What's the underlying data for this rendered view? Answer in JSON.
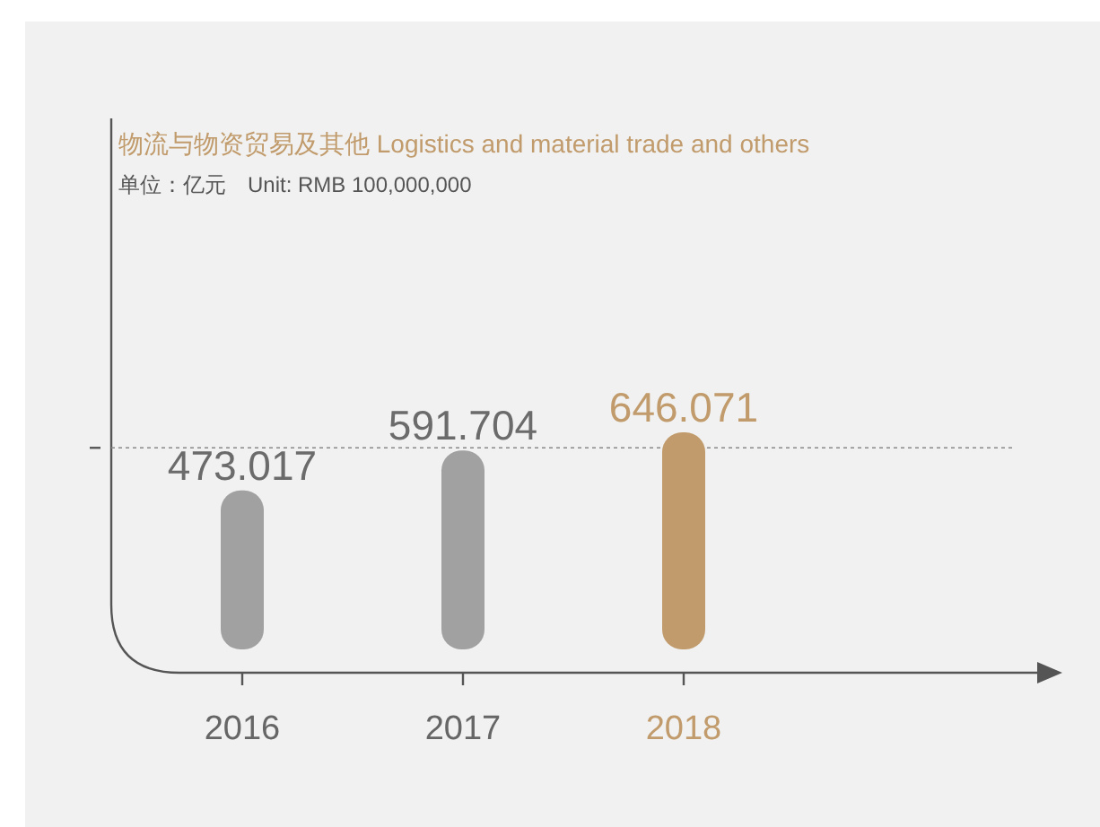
{
  "chart_data": {
    "type": "bar",
    "title": "物流与物资贸易及其他 Logistics and material trade and others",
    "subtitle": "单位：亿元　Unit: RMB 100,000,000",
    "categories": [
      "2016",
      "2017",
      "2018"
    ],
    "values": [
      473.017,
      591.704,
      646.071
    ],
    "colors": [
      "#a0a1a0",
      "#a0a1a0",
      "#c19b6c"
    ],
    "data_labels": true,
    "ref_lines": [
      {
        "axis": "y",
        "value": 600,
        "line_style": "dotted",
        "color": "#888888"
      }
    ]
  }
}
